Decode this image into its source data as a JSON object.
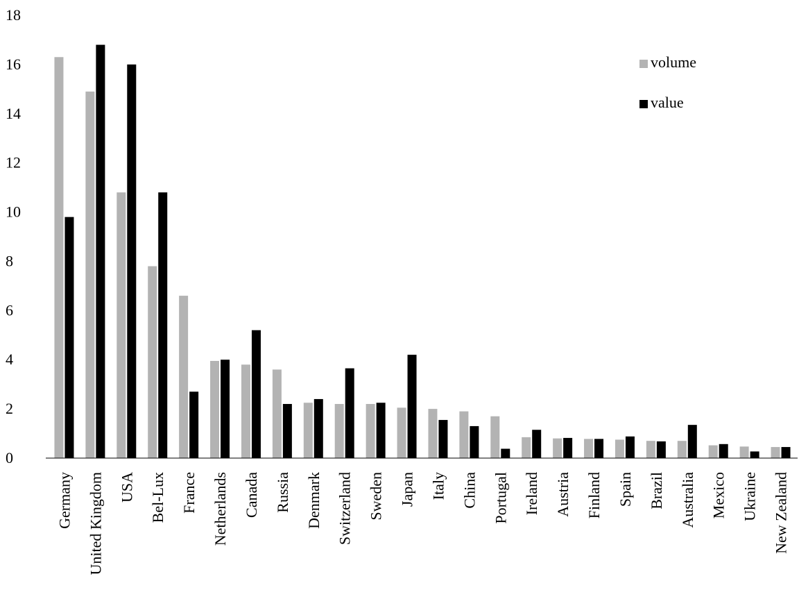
{
  "chart_data": {
    "type": "bar",
    "title": "",
    "xlabel": "",
    "ylabel": "",
    "ylim": [
      0,
      18
    ],
    "yticks": [
      0,
      2,
      4,
      6,
      8,
      10,
      12,
      14,
      16,
      18
    ],
    "grid": false,
    "legend_position": "top-right",
    "categories": [
      "Germany",
      "United Kingdom",
      "USA",
      "Bel-Lux",
      "France",
      "Netherlands",
      "Canada",
      "Russia",
      "Denmark",
      "Switzerland",
      "Sweden",
      "Japan",
      "Italy",
      "China",
      "Portugal",
      "Ireland",
      "Austria",
      "Finland",
      "Spain",
      "Brazil",
      "Australia",
      "Mexico",
      "Ukraine",
      "New Zealand"
    ],
    "series": [
      {
        "name": "volume",
        "color": "#b3b3b3",
        "values": [
          16.3,
          14.9,
          10.8,
          7.8,
          6.6,
          3.95,
          3.8,
          3.6,
          2.25,
          2.2,
          2.2,
          2.05,
          2.0,
          1.9,
          1.7,
          0.85,
          0.8,
          0.78,
          0.75,
          0.7,
          0.7,
          0.52,
          0.47,
          0.45
        ]
      },
      {
        "name": "value",
        "color": "#000000",
        "values": [
          9.8,
          16.8,
          16.0,
          10.8,
          2.7,
          4.0,
          5.2,
          2.2,
          2.4,
          3.65,
          2.25,
          4.2,
          1.55,
          1.3,
          0.38,
          1.15,
          0.82,
          0.78,
          0.88,
          0.68,
          1.35,
          0.57,
          0.27,
          0.45
        ]
      }
    ]
  }
}
